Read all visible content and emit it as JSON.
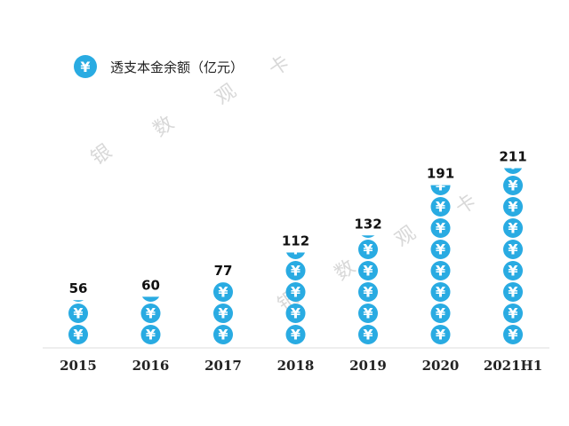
{
  "chart_data": {
    "type": "bar",
    "title": "",
    "xlabel": "",
    "ylabel": "",
    "legend": {
      "label": "透支本金余额（亿元）",
      "icon": "yen-coin-icon",
      "placement": "top-left"
    },
    "categories": [
      "2015",
      "2016",
      "2017",
      "2018",
      "2019",
      "2020",
      "2021H1"
    ],
    "series": [
      {
        "values": [
          56,
          60,
          77,
          112,
          132,
          191,
          211
        ]
      }
    ],
    "ylim": [
      0,
      220
    ],
    "grid": false,
    "mark_style": "stacked-coin-icons"
  },
  "watermark": {
    "chars": [
      "银",
      "数",
      "观",
      "卡"
    ]
  },
  "colors": {
    "coin": "#29ABE2",
    "axis_line": "#e9e9e9",
    "text": "#222222",
    "watermark": "#d8d8d8"
  }
}
